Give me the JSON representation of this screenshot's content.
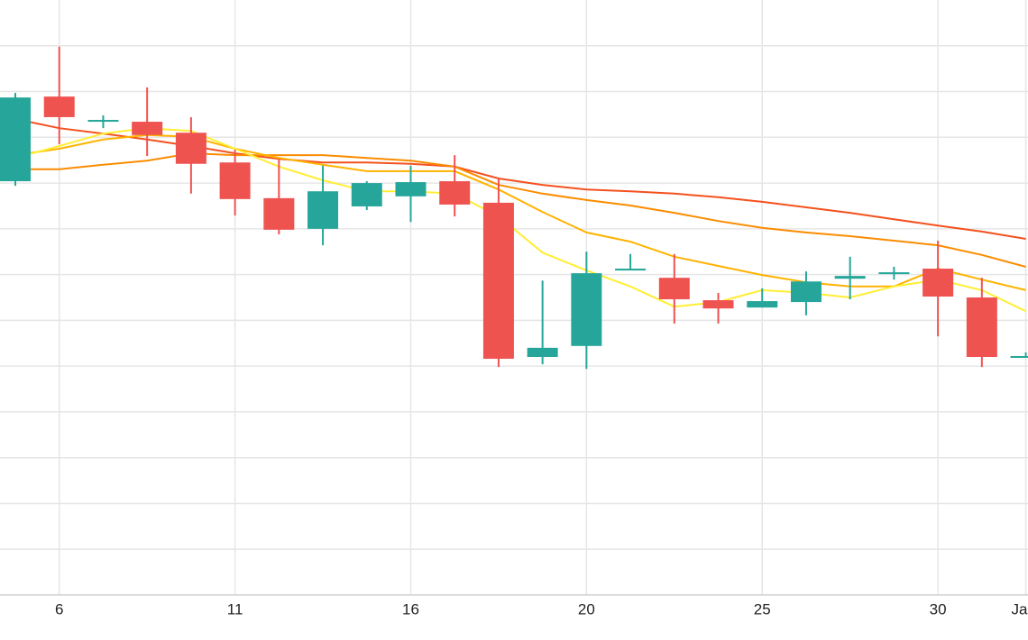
{
  "chart_data": {
    "type": "candlestick",
    "categories": [
      null,
      "6",
      null,
      null,
      null,
      "11",
      null,
      null,
      null,
      "16",
      null,
      null,
      null,
      "20",
      null,
      null,
      null,
      "25",
      null,
      null,
      null,
      "30",
      null,
      "Ja"
    ],
    "open": [
      9.04,
      10.89,
      10.34,
      10.34,
      10.1,
      9.45,
      8.67,
      8.0,
      8.49,
      8.71,
      9.04,
      8.57,
      5.2,
      5.44,
      7.09,
      6.93,
      6.44,
      6.28,
      6.4,
      6.91,
      7.01,
      7.13,
      6.5,
      5.18
    ],
    "high": [
      10.97,
      11.98,
      10.48,
      11.09,
      10.44,
      9.73,
      9.51,
      9.38,
      9.04,
      9.38,
      9.61,
      9.1,
      6.87,
      7.5,
      7.45,
      7.45,
      6.6,
      6.7,
      7.07,
      7.39,
      7.17,
      7.74,
      6.93,
      5.3
    ],
    "low": [
      8.94,
      9.85,
      10.2,
      9.59,
      8.77,
      8.29,
      7.88,
      7.64,
      8.41,
      8.15,
      8.27,
      4.98,
      5.04,
      4.94,
      7.09,
      5.93,
      5.93,
      6.28,
      6.11,
      6.46,
      6.89,
      5.65,
      4.98,
      5.18
    ],
    "close": [
      10.87,
      10.44,
      10.38,
      10.05,
      9.42,
      8.65,
      7.98,
      8.82,
      9.0,
      9.02,
      8.53,
      5.16,
      5.4,
      7.03,
      7.13,
      6.46,
      6.26,
      6.42,
      6.85,
      6.97,
      7.05,
      6.52,
      5.2,
      5.22
    ],
    "up_color": "#26a69a",
    "down_color": "#ef5350",
    "lines": [
      {
        "color": "#f4511e",
        "values": [
          10.4,
          10.2,
          10.08,
          9.95,
          9.81,
          9.65,
          9.53,
          9.45,
          9.45,
          9.42,
          9.36,
          9.1,
          8.96,
          8.86,
          8.82,
          8.77,
          8.69,
          8.59,
          8.47,
          8.35,
          8.21,
          8.07,
          7.94,
          7.78
        ]
      },
      {
        "color": "#fb8c00",
        "values": [
          9.3,
          9.3,
          9.4,
          9.49,
          9.65,
          9.61,
          9.61,
          9.61,
          9.55,
          9.49,
          9.36,
          8.96,
          8.77,
          8.63,
          8.51,
          8.35,
          8.17,
          8.02,
          7.92,
          7.84,
          7.74,
          7.64,
          7.43,
          7.17
        ]
      },
      {
        "color": "#ffb300",
        "values": [
          9.61,
          9.75,
          9.95,
          10.05,
          10.01,
          9.75,
          9.55,
          9.4,
          9.26,
          9.26,
          9.26,
          8.86,
          8.37,
          7.92,
          7.72,
          7.39,
          7.19,
          6.99,
          6.83,
          6.74,
          6.74,
          7.13,
          6.89,
          6.66
        ]
      },
      {
        "color": "#ffee33",
        "values": [
          9.55,
          9.81,
          10.08,
          10.2,
          10.14,
          9.75,
          9.36,
          9.06,
          8.82,
          8.82,
          8.77,
          8.27,
          7.48,
          7.09,
          6.74,
          6.3,
          6.4,
          6.66,
          6.6,
          6.5,
          6.74,
          6.89,
          6.66,
          6.2
        ]
      }
    ],
    "ylim": [
      0,
      13
    ],
    "ygrid": [
      1,
      2,
      3,
      4,
      5,
      6,
      7,
      8,
      9,
      10,
      11,
      12
    ],
    "grid": true
  }
}
